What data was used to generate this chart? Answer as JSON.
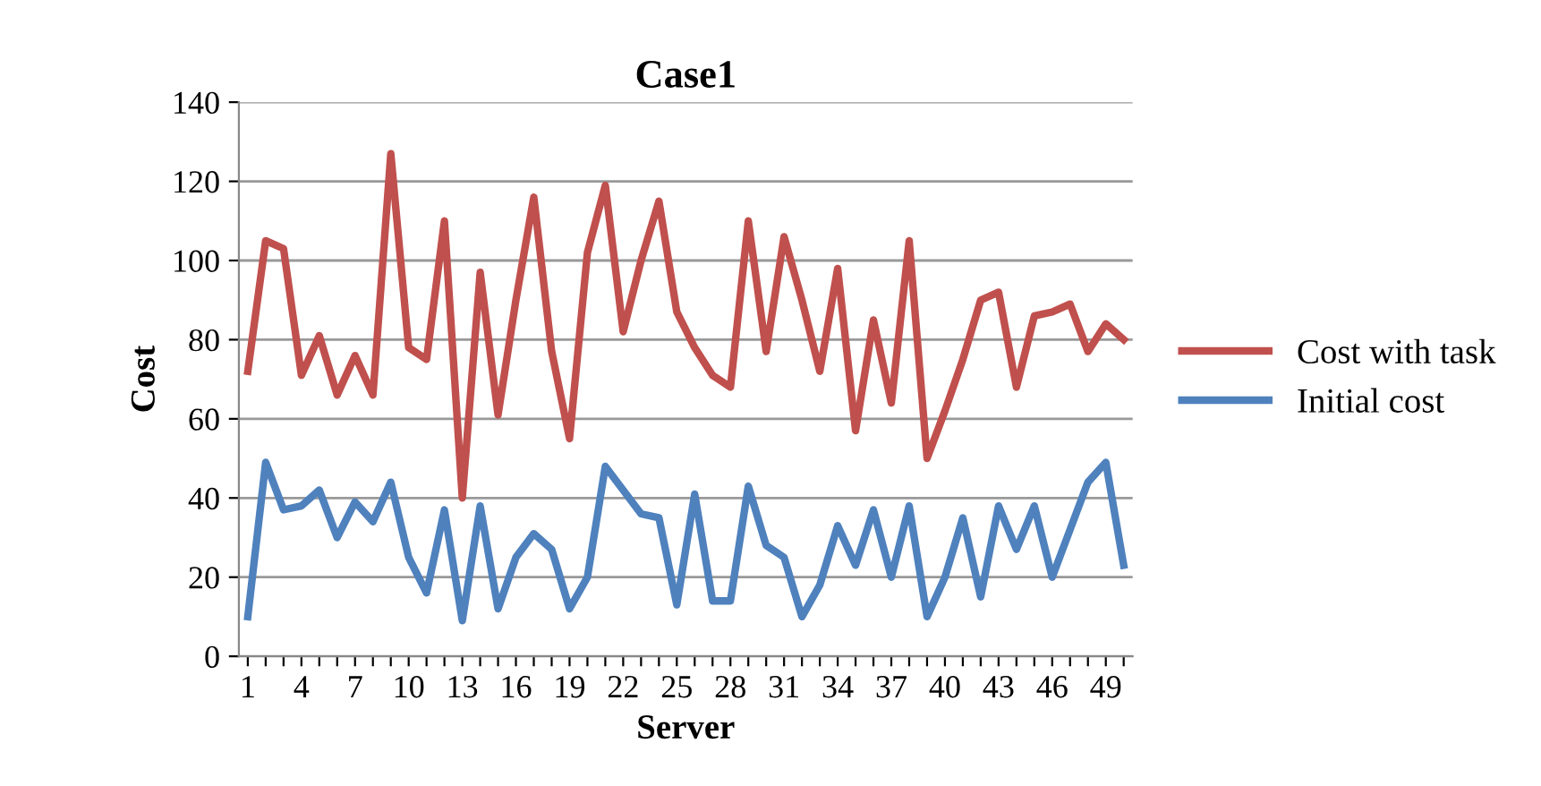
{
  "chart_data": {
    "type": "line",
    "title": "Case1",
    "xlabel": "Server",
    "ylabel": "Cost",
    "categories": [
      "1",
      null,
      null,
      "4",
      null,
      null,
      "7",
      null,
      null,
      "10",
      null,
      null,
      "13",
      null,
      null,
      "16",
      null,
      null,
      "19",
      null,
      null,
      "22",
      null,
      null,
      "25",
      null,
      null,
      "28",
      null,
      null,
      "31",
      null,
      null,
      "34",
      null,
      null,
      "37",
      null,
      null,
      "40",
      null,
      null,
      "43",
      null,
      null,
      "46",
      null,
      null,
      "49",
      null
    ],
    "series": [
      {
        "name": "Cost with task",
        "color": "#c0504d",
        "values": [
          72,
          105,
          103,
          71,
          81,
          66,
          76,
          66,
          127,
          78,
          75,
          110,
          40,
          97,
          61,
          90,
          116,
          77,
          55,
          102,
          119,
          82,
          100,
          115,
          87,
          78,
          71,
          68,
          110,
          77,
          106,
          90,
          72,
          98,
          57,
          85,
          64,
          105,
          50,
          62,
          75,
          90,
          92,
          68,
          86,
          87,
          89,
          77,
          84,
          80
        ]
      },
      {
        "name": "Initial cost",
        "color": "#4f81bd",
        "values": [
          10,
          49,
          37,
          38,
          42,
          30,
          39,
          34,
          44,
          25,
          16,
          37,
          9,
          38,
          12,
          25,
          31,
          27,
          12,
          20,
          48,
          42,
          36,
          35,
          13,
          41,
          14,
          14,
          43,
          28,
          25,
          10,
          18,
          33,
          23,
          37,
          20,
          38,
          10,
          20,
          35,
          15,
          38,
          27,
          38,
          20,
          32,
          44,
          49,
          23
        ]
      }
    ],
    "ylim": [
      0,
      140
    ],
    "yticks": [
      0,
      20,
      40,
      60,
      80,
      100,
      120,
      140
    ],
    "grid": "y",
    "legend": "right",
    "marker": "none",
    "line_style": "solid"
  }
}
